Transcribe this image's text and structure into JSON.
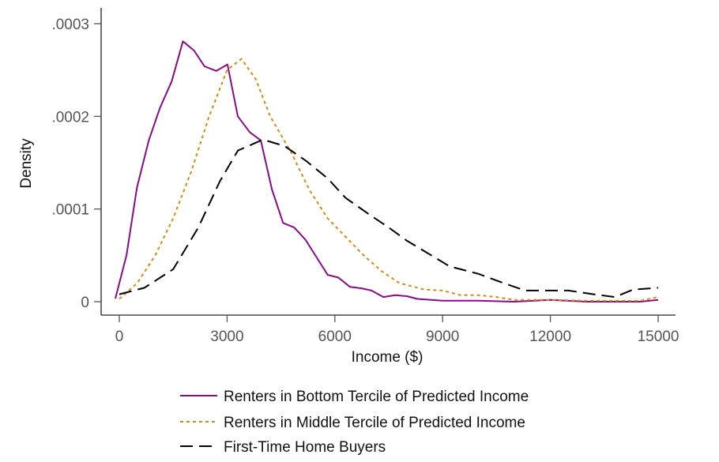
{
  "chart_data": {
    "type": "line",
    "title": "",
    "xlabel": "Income ($)",
    "ylabel": "Density",
    "xlim": [
      -500,
      15500
    ],
    "ylim": [
      0,
      0.0003
    ],
    "xticks": [
      0,
      3000,
      6000,
      9000,
      12000,
      15000
    ],
    "xtick_labels": [
      "0",
      "3000",
      "6000",
      "9000",
      "12000",
      "15000"
    ],
    "yticks": [
      0,
      0.0001,
      0.0002,
      0.0003
    ],
    "ytick_labels": [
      "0",
      ".0001",
      ".0002",
      ".0003"
    ],
    "grid": false,
    "legend_position": "bottom",
    "series": [
      {
        "name": "Renters in Bottom Tercile of Predicted Income",
        "color": "#8B0A8B",
        "style": "solid",
        "x": [
          -110,
          200,
          490,
          820,
          1130,
          1460,
          1770,
          2080,
          2370,
          2700,
          3010,
          3300,
          3630,
          3940,
          4250,
          4560,
          4870,
          5180,
          5800,
          6100,
          6420,
          6730,
          7020,
          7350,
          7680,
          8000,
          8300,
          9000,
          10000,
          11000,
          12000,
          13000,
          14000,
          14500,
          15000
        ],
        "y": [
          3.4e-06,
          5e-05,
          0.000123,
          0.000174,
          0.000209,
          0.000238,
          0.000281,
          0.000271,
          0.000254,
          0.000249,
          0.000256,
          0.0002,
          0.000183,
          0.000174,
          0.000121,
          8.5e-05,
          8e-05,
          6.7e-05,
          2.9e-05,
          2.6e-05,
          1.6e-05,
          1.45e-05,
          1.2e-05,
          5e-06,
          7e-06,
          6e-06,
          3e-06,
          1e-06,
          1e-06,
          0.0,
          2e-06,
          0.0,
          0.0,
          0.0,
          2e-06
        ]
      },
      {
        "name": "Renters in Middle Tercile of Predicted Income",
        "color": "#D98A0F",
        "style": "short-dash",
        "x": [
          0,
          500,
          1000,
          1500,
          2000,
          2500,
          3000,
          3400,
          3800,
          4200,
          4800,
          5300,
          5800,
          6300,
          6800,
          7300,
          7800,
          8500,
          9000,
          9500,
          10000,
          10500,
          11000,
          12000,
          13000,
          14000,
          14500,
          15000
        ],
        "y": [
          3e-06,
          2e-05,
          5e-05,
          9e-05,
          0.00014,
          0.0002,
          0.00025,
          0.000262,
          0.00024,
          0.0002,
          0.00016,
          0.00012,
          9e-05,
          7e-05,
          5e-05,
          3.3e-05,
          2e-05,
          1.3e-05,
          1.2e-05,
          7e-06,
          7e-06,
          5e-06,
          2e-06,
          2e-06,
          1e-06,
          1e-06,
          1e-06,
          5e-06
        ]
      },
      {
        "name": "First-Time Home Buyers",
        "color": "#000000",
        "style": "long-dash",
        "x": [
          0,
          700,
          1500,
          2200,
          2800,
          3300,
          4000,
          4600,
          5200,
          5800,
          6300,
          7000,
          7500,
          8000,
          8600,
          9200,
          10000,
          10700,
          11300,
          12000,
          12500,
          13200,
          13800,
          14300,
          15000
        ],
        "y": [
          8e-06,
          1.5e-05,
          3.5e-05,
          8e-05,
          0.00013,
          0.000163,
          0.000175,
          0.000168,
          0.000152,
          0.000133,
          0.000112,
          9.3e-05,
          8e-05,
          6.6e-05,
          5.2e-05,
          3.8e-05,
          3e-05,
          2e-05,
          1.2e-05,
          1.2e-05,
          1.2e-05,
          8e-06,
          5e-06,
          1.3e-05,
          1.5e-05
        ]
      }
    ]
  }
}
